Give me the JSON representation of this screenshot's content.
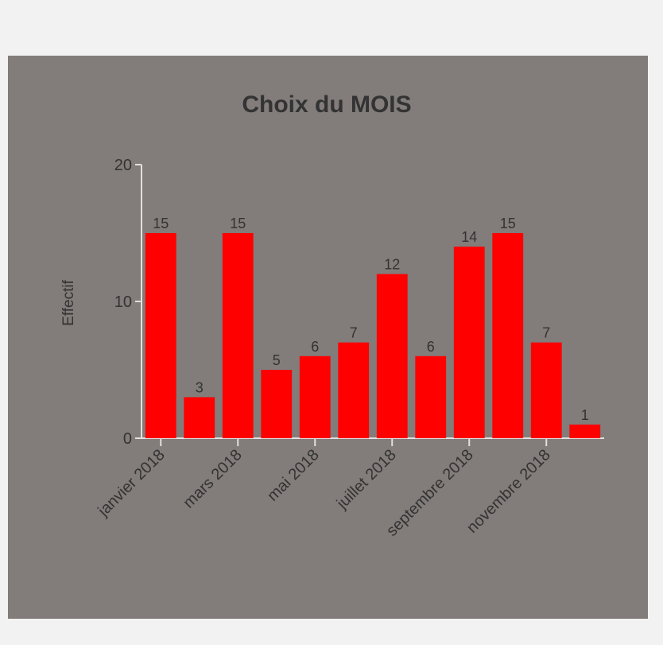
{
  "chart_data": {
    "type": "bar",
    "title": "Choix du MOIS",
    "y_label": "Effectif",
    "categories": [
      "janvier 2018",
      null,
      "mars 2018",
      null,
      "mai 2018",
      null,
      "juillet 2018",
      null,
      "septembre 2018",
      null,
      "novembre 2018",
      null
    ],
    "values": [
      15,
      3,
      15,
      5,
      6,
      7,
      12,
      6,
      14,
      15,
      7,
      1
    ],
    "color": "#ff0000",
    "ylim": [
      0,
      20
    ],
    "yticks": [
      0,
      10,
      20
    ]
  }
}
